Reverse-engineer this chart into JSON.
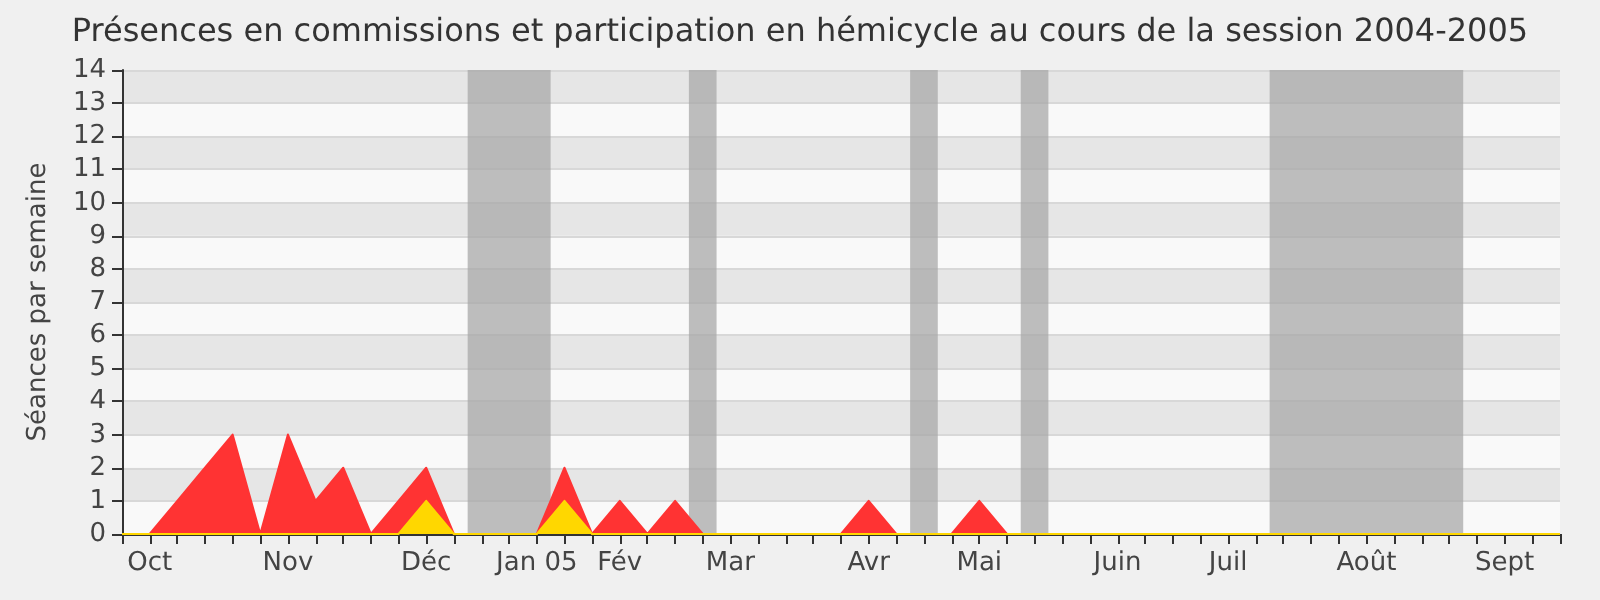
{
  "chart_data": {
    "type": "area",
    "title": "Présences en commissions et participation en hémicycle au cours de la session 2004-2005",
    "ylabel": "Séances par semaine",
    "x": [
      "2004-10-04",
      "2004-10-11",
      "2004-10-18",
      "2004-10-25",
      "2004-11-01",
      "2004-11-08",
      "2004-11-15",
      "2004-11-22",
      "2004-11-29",
      "2004-12-06",
      "2004-12-13",
      "2004-12-20",
      "2004-12-27",
      "2005-01-03",
      "2005-01-10",
      "2005-01-17",
      "2005-01-24",
      "2005-01-31",
      "2005-02-07",
      "2005-02-14",
      "2005-02-21",
      "2005-02-28",
      "2005-03-07",
      "2005-03-14",
      "2005-03-21",
      "2005-03-28",
      "2005-04-04",
      "2005-04-11",
      "2005-04-18",
      "2005-04-25",
      "2005-05-02",
      "2005-05-09",
      "2005-05-16",
      "2005-05-23",
      "2005-05-30",
      "2005-06-06",
      "2005-06-13",
      "2005-06-20",
      "2005-06-27",
      "2005-07-04",
      "2005-07-11",
      "2005-07-18",
      "2005-07-25",
      "2005-08-01",
      "2005-08-08",
      "2005-08-15",
      "2005-08-22",
      "2005-08-29",
      "2005-09-05",
      "2005-09-12",
      "2005-09-19",
      "2005-09-26",
      "2005-10-03"
    ],
    "series": [
      {
        "color": "#ff3333",
        "values": [
          0,
          0,
          1,
          2,
          3,
          0,
          3,
          1,
          2,
          0,
          1,
          2,
          0,
          0,
          0,
          0,
          2,
          0,
          1,
          0,
          1,
          0,
          0,
          0,
          0,
          0,
          0,
          1,
          0,
          0,
          0,
          1,
          0,
          0,
          0,
          0,
          0,
          0,
          0,
          0,
          0,
          0,
          0,
          0,
          0,
          0,
          0,
          0,
          0,
          0,
          0,
          0,
          0
        ]
      },
      {
        "color": "#ffd700",
        "values": [
          0,
          0,
          0,
          0,
          0,
          0,
          0,
          0,
          0,
          0,
          0,
          1,
          0,
          0,
          0,
          0,
          1,
          0,
          0,
          0,
          0,
          0,
          0,
          0,
          0,
          0,
          0,
          0,
          0,
          0,
          0,
          0,
          0,
          0,
          0,
          0,
          0,
          0,
          0,
          0,
          0,
          0,
          0,
          0,
          0,
          0,
          0,
          0,
          0,
          0,
          0,
          0,
          0
        ]
      }
    ],
    "xlim": [
      "2004-10-04",
      "2005-10-03"
    ],
    "xticks": [
      {
        "value": "2004-10-04",
        "label": null
      },
      {
        "value": "2004-10-11",
        "label": "Oct"
      },
      {
        "value": "2004-10-18",
        "label": null
      },
      {
        "value": "2004-10-25",
        "label": null
      },
      {
        "value": "2004-11-01",
        "label": null
      },
      {
        "value": "2004-11-08",
        "label": null
      },
      {
        "value": "2004-11-15",
        "label": "Nov"
      },
      {
        "value": "2004-11-22",
        "label": null
      },
      {
        "value": "2004-11-29",
        "label": null
      },
      {
        "value": "2004-12-06",
        "label": null
      },
      {
        "value": "2004-12-13",
        "label": null
      },
      {
        "value": "2004-12-20",
        "label": "Déc"
      },
      {
        "value": "2004-12-27",
        "label": null
      },
      {
        "value": "2005-01-03",
        "label": null
      },
      {
        "value": "2005-01-10",
        "label": null
      },
      {
        "value": "2005-01-17",
        "label": "Jan 05"
      },
      {
        "value": "2005-01-24",
        "label": null
      },
      {
        "value": "2005-01-31",
        "label": null
      },
      {
        "value": "2005-02-07",
        "label": "Fév"
      },
      {
        "value": "2005-02-14",
        "label": null
      },
      {
        "value": "2005-02-21",
        "label": null
      },
      {
        "value": "2005-02-28",
        "label": null
      },
      {
        "value": "2005-03-07",
        "label": "Mar"
      },
      {
        "value": "2005-03-14",
        "label": null
      },
      {
        "value": "2005-03-21",
        "label": null
      },
      {
        "value": "2005-03-28",
        "label": null
      },
      {
        "value": "2005-04-04",
        "label": null
      },
      {
        "value": "2005-04-11",
        "label": "Avr"
      },
      {
        "value": "2005-04-18",
        "label": null
      },
      {
        "value": "2005-04-25",
        "label": null
      },
      {
        "value": "2005-05-02",
        "label": null
      },
      {
        "value": "2005-05-09",
        "label": "Mai"
      },
      {
        "value": "2005-05-16",
        "label": null
      },
      {
        "value": "2005-05-23",
        "label": null
      },
      {
        "value": "2005-05-30",
        "label": null
      },
      {
        "value": "2005-06-06",
        "label": null
      },
      {
        "value": "2005-06-13",
        "label": "Juin"
      },
      {
        "value": "2005-06-20",
        "label": null
      },
      {
        "value": "2005-06-27",
        "label": null
      },
      {
        "value": "2005-07-04",
        "label": null
      },
      {
        "value": "2005-07-11",
        "label": "Juil"
      },
      {
        "value": "2005-07-18",
        "label": null
      },
      {
        "value": "2005-07-25",
        "label": null
      },
      {
        "value": "2005-08-01",
        "label": null
      },
      {
        "value": "2005-08-08",
        "label": null
      },
      {
        "value": "2005-08-15",
        "label": "Août"
      },
      {
        "value": "2005-08-22",
        "label": null
      },
      {
        "value": "2005-08-29",
        "label": null
      },
      {
        "value": "2005-09-05",
        "label": null
      },
      {
        "value": "2005-09-12",
        "label": null
      },
      {
        "value": "2005-09-19",
        "label": "Sept"
      },
      {
        "value": "2005-09-26",
        "label": null
      },
      {
        "value": "2005-10-03",
        "label": null
      }
    ],
    "ylim": [
      0,
      14
    ],
    "yticks": [
      0,
      1,
      2,
      3,
      4,
      5,
      6,
      7,
      8,
      9,
      10,
      11,
      12,
      13,
      14
    ],
    "grid": "y",
    "bands": [
      {
        "axis": "x",
        "from": "2004-12-30T12:00",
        "to": "2005-01-20T12:00",
        "color": "#a8a8a8"
      },
      {
        "axis": "x",
        "from": "2005-02-24T12:00",
        "to": "2005-03-03T12:00",
        "color": "#a8a8a8"
      },
      {
        "axis": "x",
        "from": "2005-04-21T12:00",
        "to": "2005-04-28T12:00",
        "color": "#a8a8a8"
      },
      {
        "axis": "x",
        "from": "2005-05-19T12:00",
        "to": "2005-05-26T12:00",
        "color": "#a8a8a8"
      },
      {
        "axis": "x",
        "from": "2005-07-21T12:00",
        "to": "2005-09-08T12:00",
        "color": "#a8a8a8"
      }
    ]
  }
}
